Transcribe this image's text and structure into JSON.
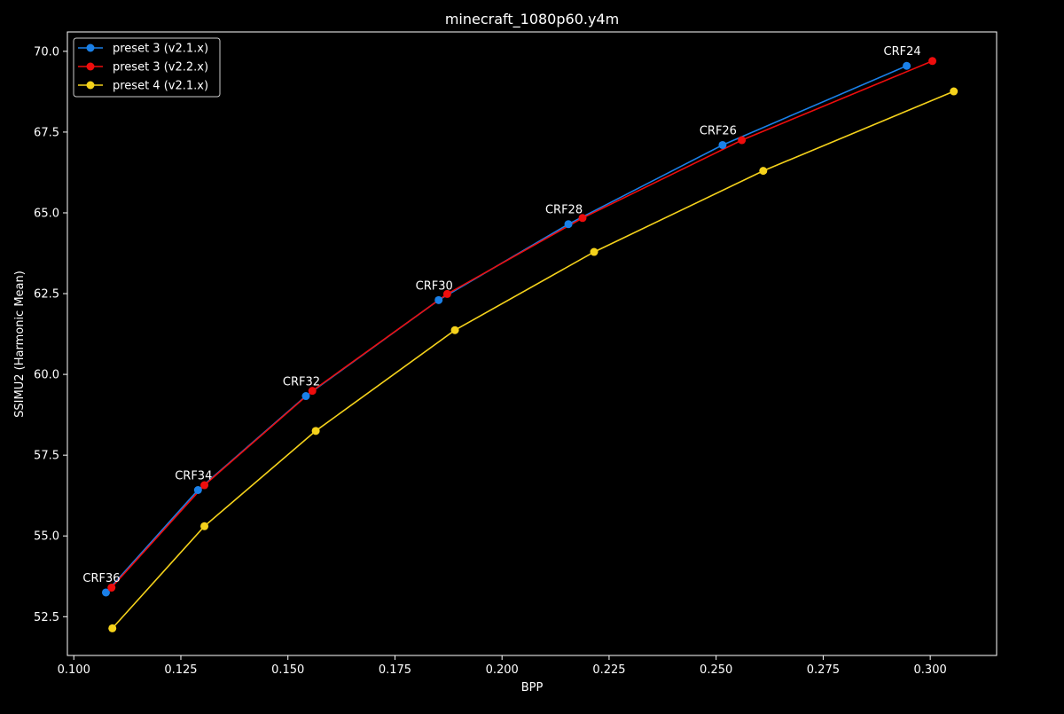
{
  "chart_data": {
    "type": "line",
    "title": "minecraft_1080p60.y4m",
    "xlabel": "BPP",
    "ylabel": "SSIMU2 (Harmonic Mean)",
    "xlim": [
      0.0985,
      0.3155
    ],
    "ylim": [
      51.3,
      70.6
    ],
    "xticks": [
      0.1,
      0.125,
      0.15,
      0.175,
      0.2,
      0.225,
      0.25,
      0.275,
      0.3
    ],
    "xtick_labels": [
      "0.100",
      "0.125",
      "0.150",
      "0.175",
      "0.200",
      "0.225",
      "0.250",
      "0.275",
      "0.300"
    ],
    "yticks": [
      52.5,
      55.0,
      57.5,
      60.0,
      62.5,
      65.0,
      67.5,
      70.0
    ],
    "ytick_labels": [
      "52.5",
      "55.0",
      "57.5",
      "60.0",
      "62.5",
      "65.0",
      "67.5",
      "70.0"
    ],
    "grid": false,
    "legend_position": "top-left",
    "series": [
      {
        "name": "preset 3 (v2.1.x)",
        "color": "#1a80e8",
        "x": [
          0.1075,
          0.129,
          0.1542,
          0.1852,
          0.2155,
          0.2515,
          0.2945
        ],
        "y": [
          53.25,
          56.42,
          59.33,
          62.3,
          64.65,
          67.1,
          69.55
        ]
      },
      {
        "name": "preset 3 (v2.2.x)",
        "color": "#ee0d0d",
        "x": [
          0.1088,
          0.1305,
          0.1557,
          0.1872,
          0.2188,
          0.256,
          0.3005
        ],
        "y": [
          53.4,
          56.57,
          59.49,
          62.49,
          64.84,
          67.25,
          69.7
        ]
      },
      {
        "name": "preset 4 (v2.1.x)",
        "color": "#f5d21b",
        "x": [
          0.109,
          0.1305,
          0.1565,
          0.189,
          0.2215,
          0.261,
          0.3055
        ],
        "y": [
          52.14,
          55.3,
          58.25,
          61.37,
          63.79,
          66.3,
          68.76
        ]
      }
    ],
    "annotations": [
      {
        "text": "CRF36",
        "x": 0.1075,
        "y": 53.25
      },
      {
        "text": "CRF34",
        "x": 0.129,
        "y": 56.42
      },
      {
        "text": "CRF32",
        "x": 0.1542,
        "y": 59.33
      },
      {
        "text": "CRF30",
        "x": 0.1852,
        "y": 62.3
      },
      {
        "text": "CRF28",
        "x": 0.2155,
        "y": 64.65
      },
      {
        "text": "CRF26",
        "x": 0.2515,
        "y": 67.1
      },
      {
        "text": "CRF24",
        "x": 0.2945,
        "y": 69.55
      }
    ]
  }
}
